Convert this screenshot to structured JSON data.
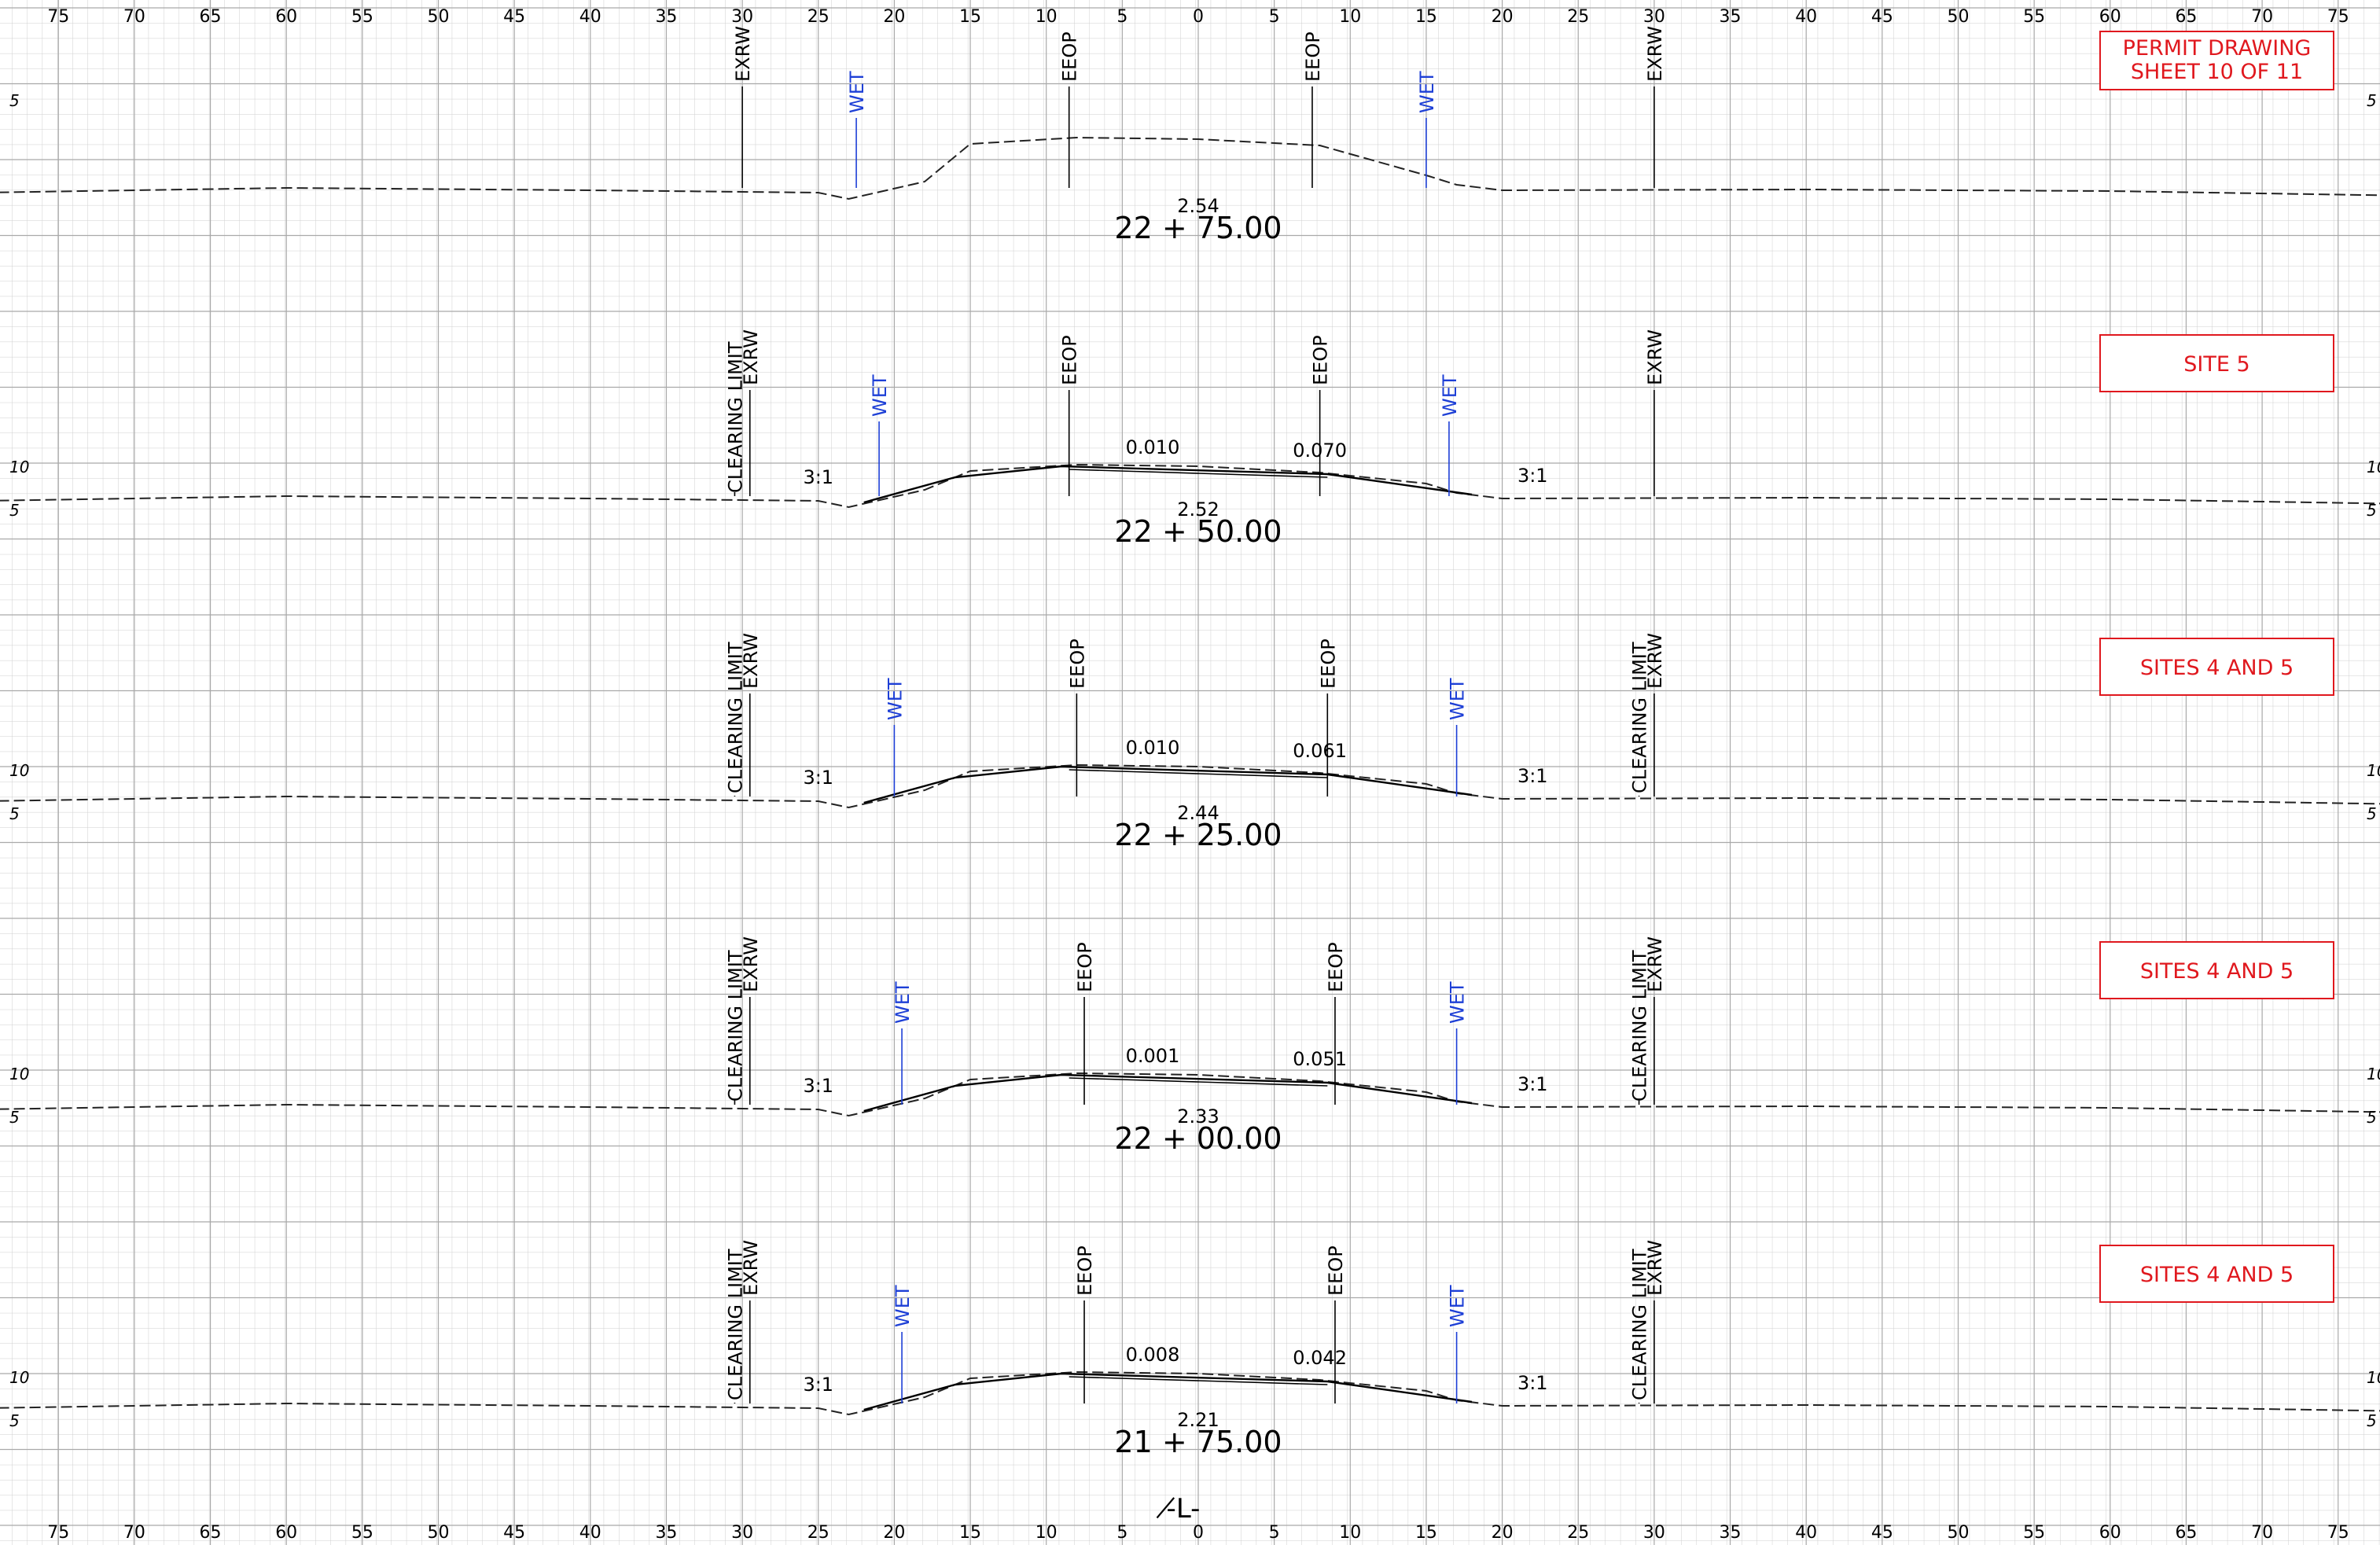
{
  "axis": {
    "top_labels": [
      "75",
      "70",
      "65",
      "60",
      "55",
      "50",
      "45",
      "40",
      "35",
      "30",
      "25",
      "20",
      "15",
      "10",
      "5",
      "0",
      "5",
      "10",
      "15",
      "20",
      "25",
      "30",
      "35",
      "40",
      "45",
      "50",
      "55",
      "60",
      "65",
      "70",
      "75"
    ],
    "bottom_labels": [
      "75",
      "70",
      "65",
      "60",
      "55",
      "50",
      "45",
      "40",
      "35",
      "30",
      "25",
      "20",
      "15",
      "10",
      "5",
      "0",
      "5",
      "10",
      "15",
      "20",
      "25",
      "30",
      "35",
      "40",
      "45",
      "50",
      "55",
      "60",
      "65",
      "70",
      "75"
    ],
    "centerline_label": "-̸L-"
  },
  "sections": [
    {
      "station": "22 + 75.00",
      "elevation": "2.54",
      "tag_lines": [
        "PERMIT DRAWING",
        "SHEET 10 OF 11"
      ],
      "left_scale": [
        "5"
      ],
      "right_scale": [
        "5"
      ],
      "labels": [
        "EXRW",
        "WET",
        "EEOP",
        "EEOP",
        "WET",
        "EXRW"
      ],
      "slopes": []
    },
    {
      "station": "22 + 50.00",
      "elevation": "2.52",
      "tag_lines": [
        "SITE 5"
      ],
      "left_scale": [
        "10",
        "5"
      ],
      "right_scale": [
        "10",
        "5"
      ],
      "labels": [
        "CLEARING LIMIT",
        "EXRW",
        "WET",
        "EEOP",
        "EEOP",
        "WET",
        "EXRW"
      ],
      "slopes": [
        "3:1",
        "0.010",
        "0.070",
        "3:1"
      ]
    },
    {
      "station": "22 + 25.00",
      "elevation": "2.44",
      "tag_lines": [
        "SITES 4 AND 5"
      ],
      "left_scale": [
        "10",
        "5"
      ],
      "right_scale": [
        "10",
        "5"
      ],
      "labels": [
        "CLEARING LIMIT",
        "EXRW",
        "WET",
        "EEOP",
        "EEOP",
        "WET",
        "CLEARING LIMIT",
        "EXRW"
      ],
      "slopes": [
        "3:1",
        "0.010",
        "0.061",
        "3:1"
      ]
    },
    {
      "station": "22 + 00.00",
      "elevation": "2.33",
      "tag_lines": [
        "SITES 4 AND 5"
      ],
      "left_scale": [
        "10",
        "5"
      ],
      "right_scale": [
        "10",
        "5"
      ],
      "labels": [
        "CLEARING LIMIT",
        "EXRW",
        "WET",
        "EEOP",
        "EEOP",
        "WET",
        "CLEARING LIMIT",
        "EXRW"
      ],
      "slopes": [
        "3:1",
        "0.001",
        "0.051",
        "3:1"
      ]
    },
    {
      "station": "21 + 75.00",
      "elevation": "2.21",
      "tag_lines": [
        "SITES 4 AND 5"
      ],
      "left_scale": [
        "10",
        "5"
      ],
      "right_scale": [
        "10",
        "5"
      ],
      "labels": [
        "CLEARING LIMIT",
        "EXRW",
        "WET",
        "EEOP",
        "EEOP",
        "WET",
        "CLEARING LIMIT",
        "EXRW"
      ],
      "slopes": [
        "3:1",
        "0.008",
        "0.042",
        "3:1"
      ]
    }
  ],
  "colors": {
    "grid": "#c9c9c9",
    "wet": "#1d3fd6",
    "tag": "#e0181e",
    "ink": "#000000"
  }
}
